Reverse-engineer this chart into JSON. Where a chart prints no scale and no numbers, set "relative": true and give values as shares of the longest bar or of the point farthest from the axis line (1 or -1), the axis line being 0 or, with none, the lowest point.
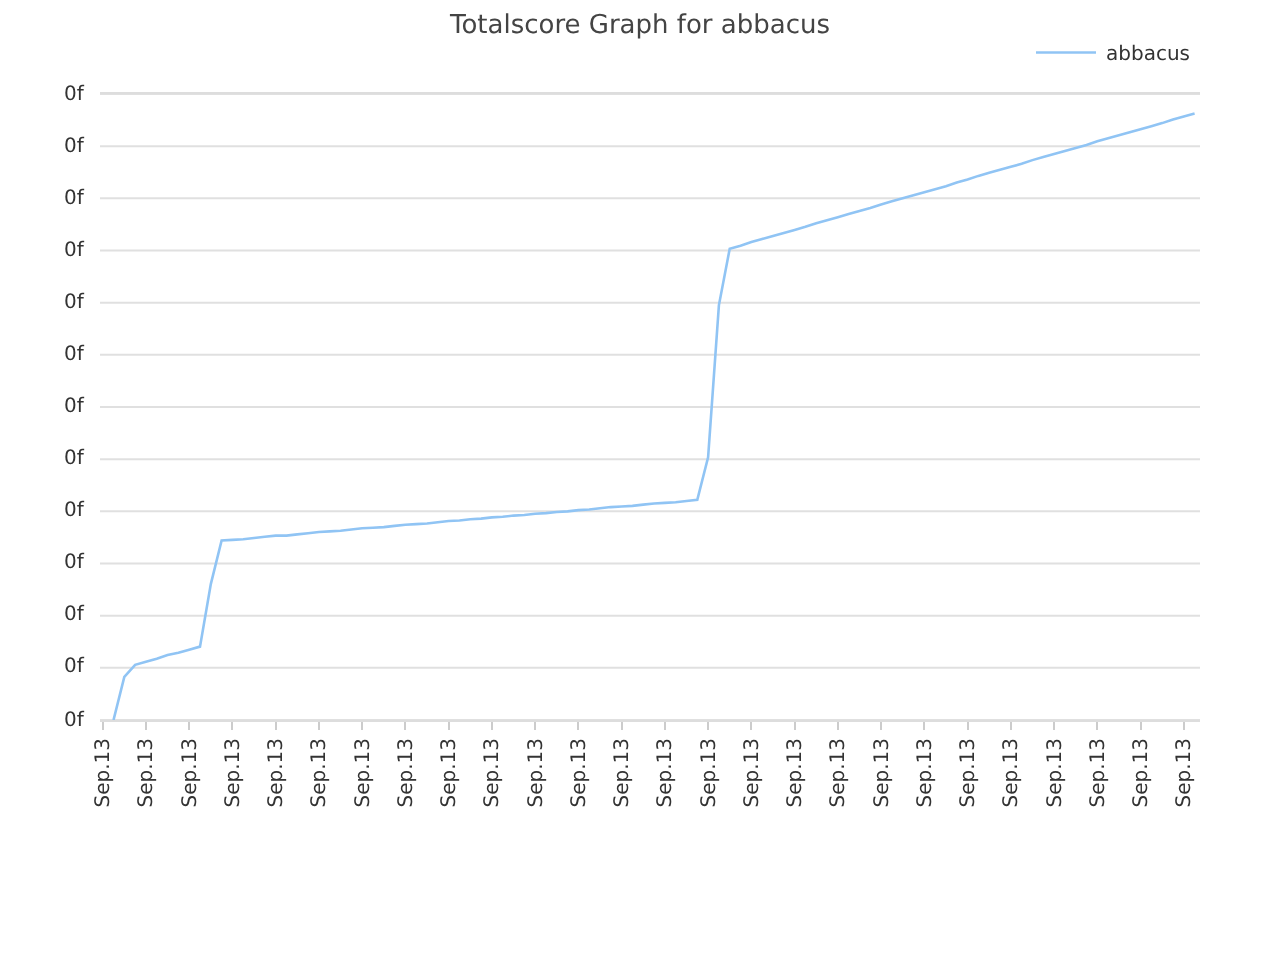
{
  "chart_data": {
    "type": "line",
    "title": "Totalscore Graph for abbacus",
    "relative": true,
    "categories": [
      "Sep.13",
      null,
      null,
      null,
      "Sep.13",
      null,
      null,
      null,
      "Sep.13",
      null,
      null,
      null,
      "Sep.13",
      null,
      null,
      null,
      "Sep.13",
      null,
      null,
      null,
      "Sep.13",
      null,
      null,
      null,
      "Sep.13",
      null,
      null,
      null,
      "Sep.13",
      null,
      null,
      null,
      "Sep.13",
      null,
      null,
      null,
      "Sep.13",
      null,
      null,
      null,
      "Sep.13",
      null,
      null,
      null,
      "Sep.13",
      null,
      null,
      null,
      "Sep.13",
      null,
      null,
      null,
      "Sep.13",
      null,
      null,
      null,
      "Sep.13",
      null,
      null,
      null,
      "Sep.13",
      null,
      null,
      null,
      "Sep.13",
      null,
      null,
      null,
      "Sep.13",
      null,
      null,
      null,
      "Sep.13",
      null,
      null,
      null,
      "Sep.13",
      null,
      null,
      null,
      "Sep.13",
      null,
      null,
      null,
      "Sep.13",
      null,
      null,
      null,
      "Sep.13",
      null,
      null,
      null,
      "Sep.13",
      null,
      null,
      null,
      "Sep.13",
      null,
      null,
      null,
      "Sep.13",
      null
    ],
    "series": [
      {
        "name": "abbacus",
        "color": "#90c4f4",
        "values": [
          null,
          0,
          0.071,
          0.091,
          0.096,
          0.101,
          0.107,
          0.111,
          0.116,
          0.121,
          0.224,
          0.296,
          0.297,
          0.298,
          0.3,
          0.302,
          0.304,
          0.304,
          0.306,
          0.308,
          0.31,
          0.311,
          0.312,
          0.314,
          0.316,
          0.317,
          0.318,
          0.32,
          0.322,
          0.323,
          0.324,
          0.326,
          0.328,
          0.329,
          0.331,
          0.332,
          0.334,
          0.335,
          0.337,
          0.338,
          0.34,
          0.341,
          0.343,
          0.344,
          0.346,
          0.347,
          0.349,
          0.351,
          0.352,
          0.353,
          0.355,
          0.357,
          0.358,
          0.359,
          0.361,
          0.363,
          0.433,
          0.684,
          0.777,
          0.782,
          0.788,
          0.793,
          0.798,
          0.803,
          0.808,
          0.813,
          0.819,
          0.824,
          0.829,
          0.834,
          0.839,
          0.844,
          0.85,
          0.855,
          0.86,
          0.865,
          0.87,
          0.875,
          0.88,
          0.886,
          0.891,
          0.897,
          0.902,
          0.907,
          0.912,
          0.917,
          0.923,
          0.928,
          0.933,
          0.938,
          0.943,
          0.948,
          0.954,
          0.959,
          0.964,
          0.969,
          0.974,
          0.979,
          0.984,
          0.99,
          0.995,
          1
        ]
      }
    ],
    "annotations": [
      "0f",
      "0f",
      "0f",
      "0f",
      "0f",
      "0f",
      "0f",
      "0f",
      "0f",
      "0f",
      "0f",
      "0f",
      "0f"
    ],
    "grid": "y",
    "legend": "top right",
    "marker": "none",
    "line_style": "solid"
  }
}
